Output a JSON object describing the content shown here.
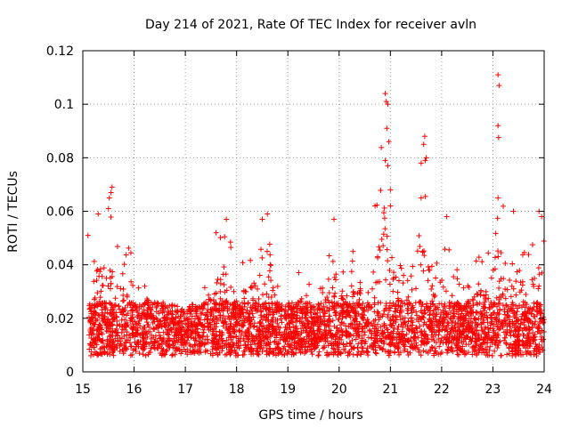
{
  "chart_data": {
    "type": "scatter",
    "title": "Day 214 of 2021, Rate Of TEC Index for receiver avln",
    "xlabel": "GPS time / hours",
    "ylabel": "ROTI / TECUs",
    "xlim": [
      15,
      24
    ],
    "ylim": [
      0,
      0.12
    ],
    "xticks": [
      "15",
      "16",
      "17",
      "18",
      "19",
      "20",
      "21",
      "22",
      "23",
      "24"
    ],
    "yticks": [
      "0",
      "0.02",
      "0.04",
      "0.06",
      "0.08",
      "0.1",
      "0.12"
    ],
    "grid": true,
    "marker": "+",
    "color": "#ff0000",
    "envelope": [
      [
        15.1,
        0.045
      ],
      [
        15.3,
        0.058
      ],
      [
        15.5,
        0.068
      ],
      [
        15.7,
        0.044
      ],
      [
        15.9,
        0.05
      ],
      [
        16.1,
        0.035
      ],
      [
        16.3,
        0.041
      ],
      [
        16.5,
        0.028
      ],
      [
        16.8,
        0.025
      ],
      [
        17.0,
        0.023
      ],
      [
        17.3,
        0.028
      ],
      [
        17.6,
        0.052
      ],
      [
        17.8,
        0.056
      ],
      [
        18.0,
        0.038
      ],
      [
        18.2,
        0.048
      ],
      [
        18.4,
        0.046
      ],
      [
        18.6,
        0.059
      ],
      [
        18.8,
        0.036
      ],
      [
        19.0,
        0.034
      ],
      [
        19.2,
        0.043
      ],
      [
        19.5,
        0.032
      ],
      [
        19.7,
        0.038
      ],
      [
        19.9,
        0.056
      ],
      [
        20.1,
        0.043
      ],
      [
        20.3,
        0.048
      ],
      [
        20.5,
        0.05
      ],
      [
        20.7,
        0.062
      ],
      [
        20.9,
        0.102
      ],
      [
        21.0,
        0.06
      ],
      [
        21.2,
        0.05
      ],
      [
        21.4,
        0.055
      ],
      [
        21.6,
        0.086
      ],
      [
        21.8,
        0.048
      ],
      [
        22.0,
        0.058
      ],
      [
        22.2,
        0.042
      ],
      [
        22.4,
        0.035
      ],
      [
        22.6,
        0.04
      ],
      [
        22.8,
        0.045
      ],
      [
        23.0,
        0.054
      ],
      [
        23.1,
        0.11
      ],
      [
        23.3,
        0.05
      ],
      [
        23.5,
        0.058
      ],
      [
        23.7,
        0.045
      ],
      [
        23.9,
        0.06
      ],
      [
        24.0,
        0.055
      ]
    ],
    "outliers": [
      [
        15.55,
        0.067
      ],
      [
        15.57,
        0.069
      ],
      [
        15.3,
        0.059
      ],
      [
        15.5,
        0.061
      ],
      [
        17.8,
        0.057
      ],
      [
        17.6,
        0.052
      ],
      [
        18.6,
        0.059
      ],
      [
        18.5,
        0.057
      ],
      [
        19.9,
        0.057
      ],
      [
        20.7,
        0.062
      ],
      [
        20.9,
        0.104
      ],
      [
        20.92,
        0.101
      ],
      [
        20.95,
        0.1
      ],
      [
        20.93,
        0.091
      ],
      [
        20.97,
        0.086
      ],
      [
        20.9,
        0.079
      ],
      [
        20.95,
        0.077
      ],
      [
        21.0,
        0.068
      ],
      [
        21.0,
        0.062
      ],
      [
        21.67,
        0.088
      ],
      [
        21.65,
        0.085
      ],
      [
        21.7,
        0.08
      ],
      [
        21.68,
        0.079
      ],
      [
        21.6,
        0.078
      ],
      [
        21.6,
        0.065
      ],
      [
        22.1,
        0.058
      ],
      [
        23.1,
        0.111
      ],
      [
        23.12,
        0.107
      ],
      [
        23.1,
        0.092
      ],
      [
        23.1,
        0.065
      ],
      [
        23.4,
        0.06
      ],
      [
        23.9,
        0.06
      ],
      [
        23.95,
        0.058
      ],
      [
        15.1,
        0.051
      ]
    ]
  }
}
